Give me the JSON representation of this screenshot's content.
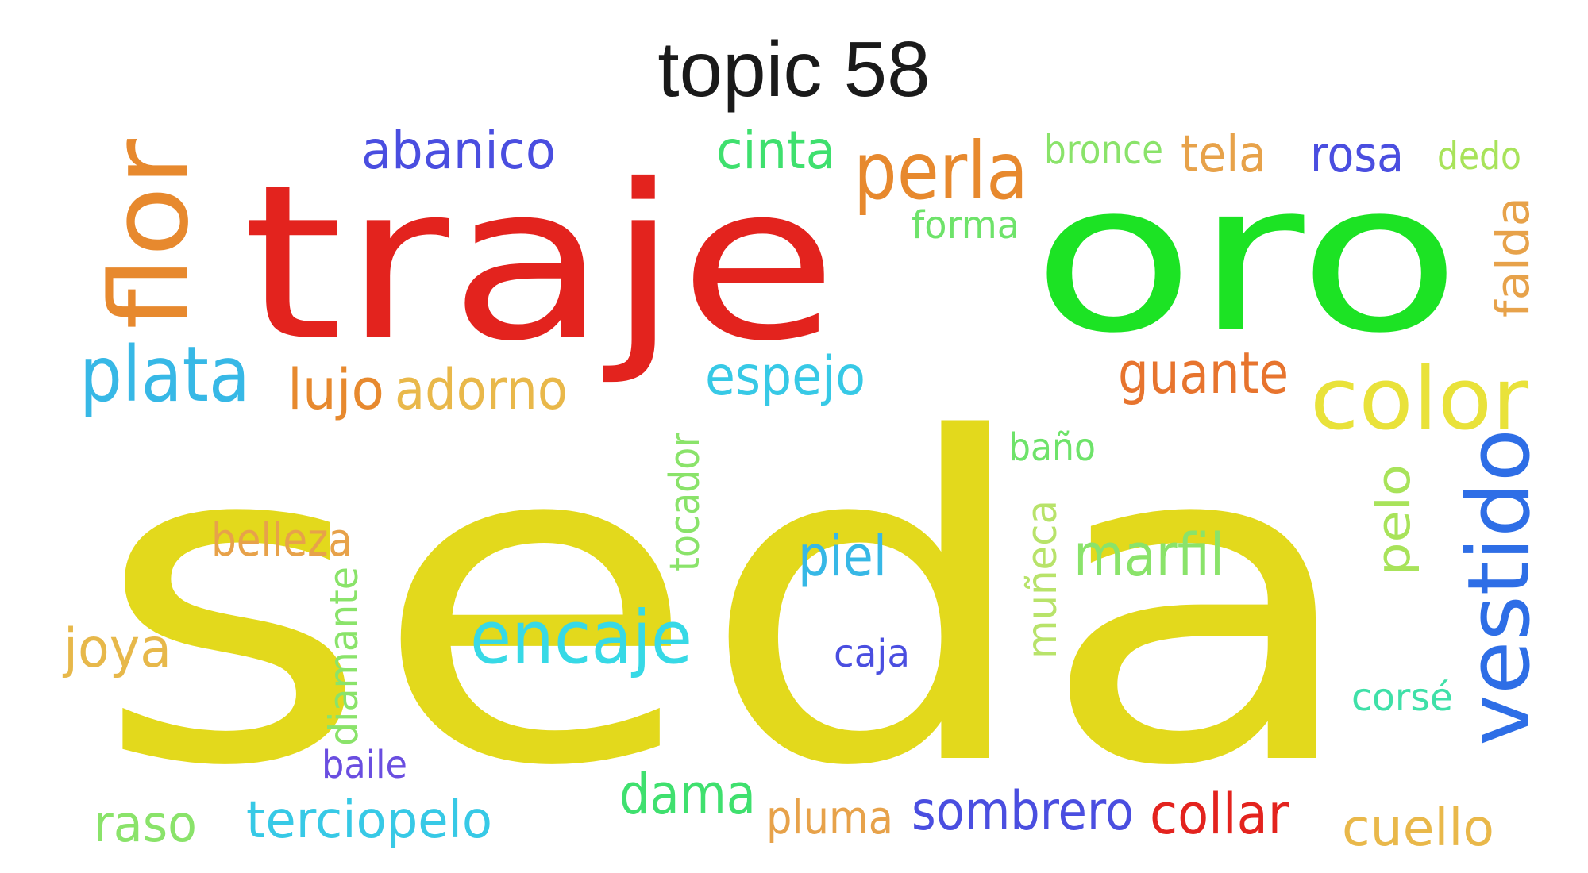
{
  "title": "topic 58",
  "words": [
    {
      "text": "seda",
      "color": "#e3d91c"
    },
    {
      "text": "traje",
      "color": "#e3231e"
    },
    {
      "text": "oro",
      "color": "#1ce324"
    },
    {
      "text": "flor",
      "color": "#e7892e"
    },
    {
      "text": "abanico",
      "color": "#4a4ee0"
    },
    {
      "text": "perla",
      "color": "#e7892e"
    },
    {
      "text": "cinta",
      "color": "#3fe06e"
    },
    {
      "text": "bronce",
      "color": "#8ae36a"
    },
    {
      "text": "tela",
      "color": "#e7a24a"
    },
    {
      "text": "rosa",
      "color": "#4a4ee0"
    },
    {
      "text": "dedo",
      "color": "#a8e35a"
    },
    {
      "text": "forma",
      "color": "#6ee36a"
    },
    {
      "text": "falda",
      "color": "#e7a24a"
    },
    {
      "text": "plata",
      "color": "#37b8e6"
    },
    {
      "text": "lujo",
      "color": "#e7892e"
    },
    {
      "text": "adorno",
      "color": "#e9b84a"
    },
    {
      "text": "espejo",
      "color": "#37c9e6"
    },
    {
      "text": "guante",
      "color": "#e7742e"
    },
    {
      "text": "color",
      "color": "#e9e23a"
    },
    {
      "text": "baño",
      "color": "#6ee36a"
    },
    {
      "text": "tocador",
      "color": "#8ae36a"
    },
    {
      "text": "belleza",
      "color": "#e7a24a"
    },
    {
      "text": "piel",
      "color": "#37b8e6"
    },
    {
      "text": "marfil",
      "color": "#8ae36a"
    },
    {
      "text": "pelo",
      "color": "#a8e35a"
    },
    {
      "text": "vestido",
      "color": "#2e6ee6"
    },
    {
      "text": "muñeca",
      "color": "#b8e36a"
    },
    {
      "text": "diamante",
      "color": "#8ae36a"
    },
    {
      "text": "encaje",
      "color": "#37d9e6"
    },
    {
      "text": "joya",
      "color": "#e7b84a"
    },
    {
      "text": "caja",
      "color": "#4a4ee0"
    },
    {
      "text": "corsé",
      "color": "#3fe0a8"
    },
    {
      "text": "baile",
      "color": "#6a4ee0"
    },
    {
      "text": "raso",
      "color": "#8ae36a"
    },
    {
      "text": "terciopelo",
      "color": "#37c9e6"
    },
    {
      "text": "dama",
      "color": "#3fe06e"
    },
    {
      "text": "pluma",
      "color": "#e7a24a"
    },
    {
      "text": "sombrero",
      "color": "#4a4ee0"
    },
    {
      "text": "collar",
      "color": "#e3231e"
    },
    {
      "text": "cuello",
      "color": "#e9b84a"
    }
  ]
}
